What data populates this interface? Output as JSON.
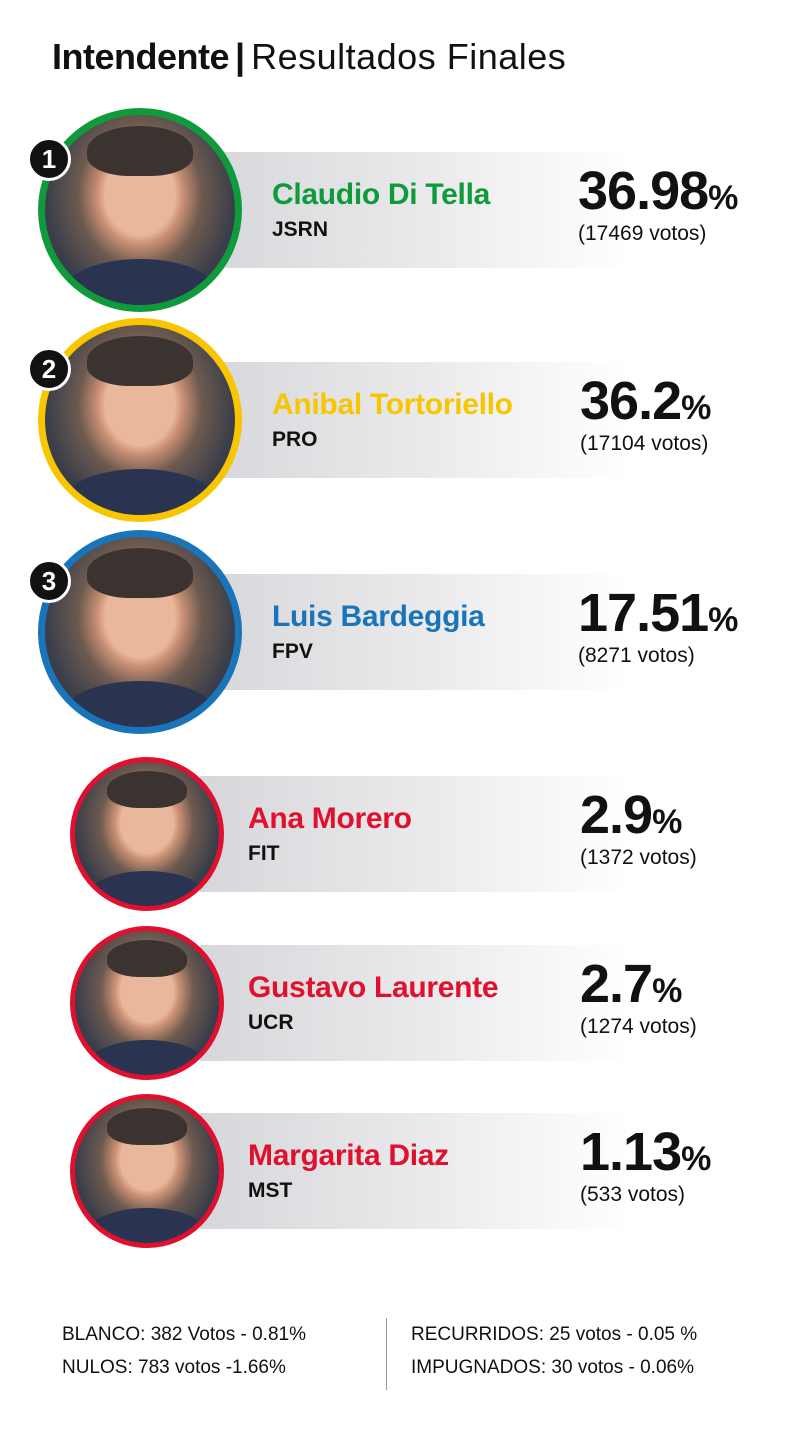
{
  "header": {
    "title_bold": "Intendente",
    "separator": "|",
    "title_light": "Resultados Finales"
  },
  "candidates": [
    {
      "rank": "1",
      "name": "Claudio Di Tella",
      "party": "JSRN",
      "percent": "36.98",
      "percent_sign": "%",
      "votes": "(17469 votos)",
      "color": "#0f9a3c"
    },
    {
      "rank": "2",
      "name": "Anibal Tortoriello",
      "party": "PRO",
      "percent": "36.2",
      "percent_sign": "%",
      "votes": "(17104 votos)",
      "color": "#f7c600"
    },
    {
      "rank": "3",
      "name": "Luis Bardeggia",
      "party": "FPV",
      "percent": "17.51",
      "percent_sign": "%",
      "votes": "(8271 votos)",
      "color": "#1a74ba"
    },
    {
      "name": "Ana Morero",
      "party": "FIT",
      "percent": "2.9",
      "percent_sign": "%",
      "votes": "(1372 votos)",
      "color": "#e0102e"
    },
    {
      "name": "Gustavo Laurente",
      "party": "UCR",
      "percent": "2.7",
      "percent_sign": "%",
      "votes": "(1274 votos)",
      "color": "#e0102e"
    },
    {
      "name": "Margarita Diaz",
      "party": "MST",
      "percent": "1.13",
      "percent_sign": "%",
      "votes": "(533 votos)",
      "color": "#e0102e"
    }
  ],
  "footer": {
    "blanco": "BLANCO:  382 Votos - 0.81%",
    "nulos": "NULOS: 783 votos -1.66%",
    "recurridos": "RECURRIDOS: 25 votos - 0.05 %",
    "impugnados": "IMPUGNADOS: 30 votos - 0.06%"
  }
}
